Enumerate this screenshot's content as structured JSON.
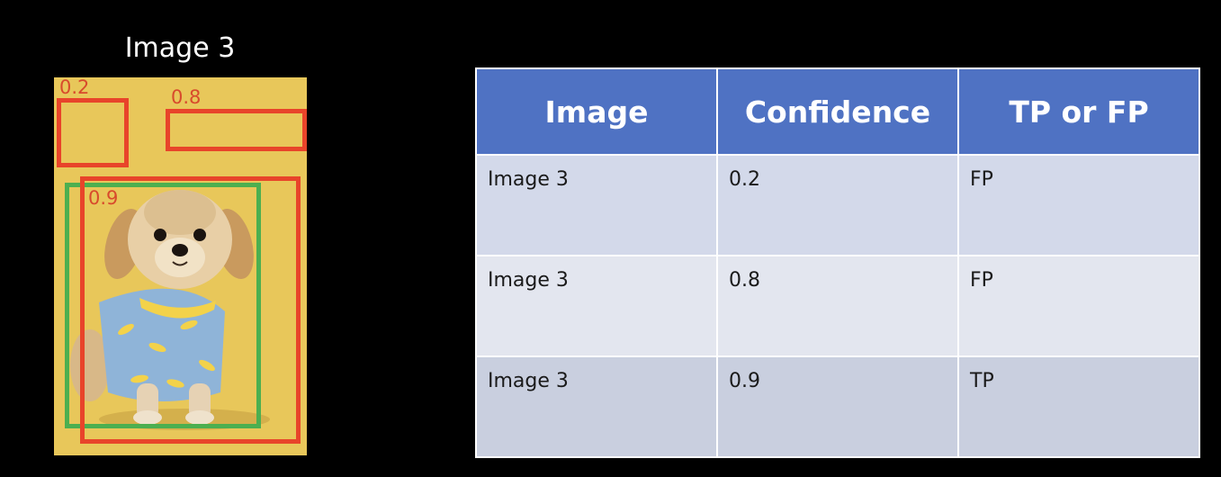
{
  "image_panel": {
    "title": "Image 3",
    "detections": [
      {
        "confidence": "0.2",
        "box_color": "#e8442a"
      },
      {
        "confidence": "0.8",
        "box_color": "#e8442a"
      },
      {
        "confidence": "0.9",
        "box_color": "#e8442a"
      }
    ],
    "ground_truth_color": "#4caf50",
    "background_color": "#e8c75a"
  },
  "table": {
    "header_color": "#4f72c3",
    "headers": [
      "Image",
      "Confidence",
      "TP or FP"
    ],
    "rows": [
      [
        "Image 3",
        "0.2",
        "FP"
      ],
      [
        "Image 3",
        "0.8",
        "FP"
      ],
      [
        "Image 3",
        "0.9",
        "TP"
      ]
    ]
  }
}
